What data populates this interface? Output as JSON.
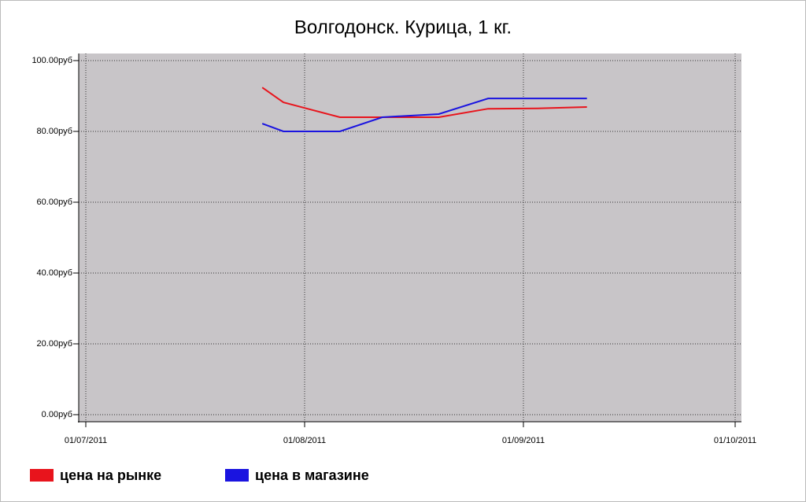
{
  "chart_data": {
    "type": "line",
    "title": "Волгодонск. Курица, 1 кг.",
    "series": [
      {
        "name": "цена на рынке",
        "color": "#e8141c",
        "x": [
          "26/07/2011",
          "29/07/2011",
          "06/08/2011",
          "20/08/2011",
          "27/08/2011",
          "03/09/2011",
          "10/09/2011"
        ],
        "values": [
          92.4,
          88.2,
          84,
          84,
          86.4,
          86.5,
          86.9
        ]
      },
      {
        "name": "цена в магазине",
        "color": "#1a14e0",
        "x": [
          "26/07/2011",
          "29/07/2011",
          "06/08/2011",
          "12/08/2011",
          "20/08/2011",
          "27/08/2011",
          "10/09/2011"
        ],
        "values": [
          82.2,
          80,
          80,
          84,
          84.9,
          89.3,
          89.3
        ]
      }
    ],
    "xlim": [
      "01/07/2011",
      "01/10/2011"
    ],
    "xticks": [
      "01/07/2011",
      "01/08/2011",
      "01/09/2011",
      "01/10/2011"
    ],
    "ylim": [
      -2,
      102
    ],
    "yticks": [
      {
        "value": 0,
        "label": "0.00руб"
      },
      {
        "value": 20,
        "label": "20.00руб"
      },
      {
        "value": 40,
        "label": "40.00руб"
      },
      {
        "value": 60,
        "label": "60.00руб"
      },
      {
        "value": 80,
        "label": "80.00руб"
      },
      {
        "value": 100,
        "label": "100.00руб"
      }
    ],
    "grid": true
  }
}
